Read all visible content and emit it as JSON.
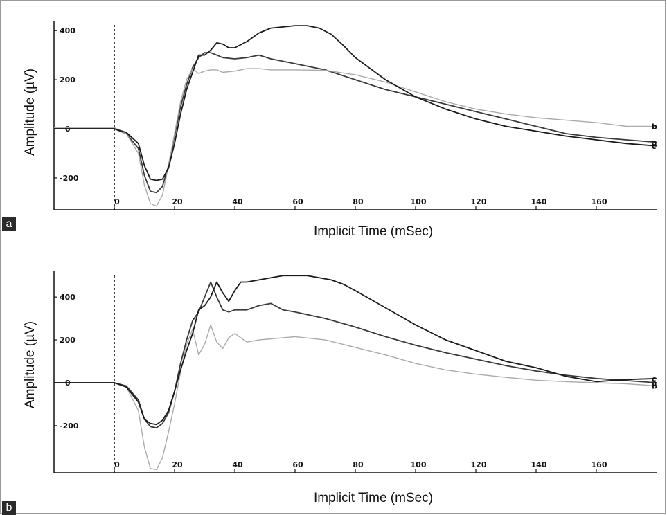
{
  "panels": [
    {
      "tag": "a",
      "ylabel": "Amplitude (µV)",
      "xlabel": "Implicit Time (mSec)"
    },
    {
      "tag": "b",
      "ylabel": "Amplitude (µV)",
      "xlabel": "Implicit Time (mSec)"
    }
  ],
  "chart_data": [
    {
      "type": "line",
      "xlabel": "Implicit Time (mSec)",
      "ylabel": "Amplitude (µV)",
      "x_ticks": [
        0,
        20,
        40,
        60,
        80,
        100,
        120,
        140,
        160
      ],
      "y_ticks": [
        400,
        200,
        0,
        -200
      ],
      "y_tick_labels": [
        "400",
        "200",
        "0",
        "-200"
      ],
      "xlim": [
        -20,
        180
      ],
      "ylim": [
        -330,
        440
      ],
      "stimulus_marker_x": 0,
      "series": [
        {
          "name": "a",
          "color": "#3a3a3a",
          "x": [
            -20,
            0,
            4,
            8,
            10,
            12,
            14,
            16,
            18,
            20,
            22,
            24,
            26,
            28,
            30,
            32,
            34,
            36,
            40,
            44,
            48,
            52,
            56,
            60,
            70,
            80,
            90,
            100,
            110,
            120,
            130,
            140,
            150,
            160,
            170,
            180
          ],
          "y": [
            0,
            0,
            -20,
            -80,
            -190,
            -255,
            -260,
            -235,
            -150,
            -30,
            90,
            180,
            250,
            290,
            310,
            310,
            300,
            290,
            285,
            290,
            300,
            285,
            275,
            265,
            240,
            200,
            160,
            130,
            100,
            70,
            40,
            10,
            -20,
            -35,
            -45,
            -55
          ]
        },
        {
          "name": "b",
          "color": "#aaaaaa",
          "x": [
            -20,
            0,
            4,
            8,
            10,
            12,
            14,
            16,
            18,
            20,
            22,
            24,
            26,
            28,
            30,
            32,
            34,
            36,
            40,
            44,
            48,
            52,
            60,
            70,
            80,
            90,
            100,
            110,
            120,
            130,
            140,
            150,
            160,
            170,
            180
          ],
          "y": [
            5,
            5,
            -20,
            -100,
            -230,
            -305,
            -315,
            -270,
            -150,
            -20,
            110,
            200,
            245,
            225,
            235,
            240,
            240,
            230,
            235,
            245,
            245,
            240,
            240,
            238,
            220,
            190,
            150,
            110,
            80,
            60,
            45,
            35,
            25,
            10,
            10
          ]
        },
        {
          "name": "c",
          "color": "#1a1a1a",
          "x": [
            -20,
            0,
            4,
            8,
            10,
            12,
            14,
            16,
            18,
            20,
            22,
            24,
            26,
            28,
            30,
            32,
            34,
            36,
            38,
            40,
            44,
            48,
            52,
            56,
            60,
            64,
            68,
            72,
            76,
            80,
            90,
            100,
            110,
            120,
            130,
            140,
            150,
            160,
            170,
            180
          ],
          "y": [
            0,
            0,
            -15,
            -60,
            -150,
            -205,
            -210,
            -205,
            -160,
            -60,
            60,
            160,
            230,
            300,
            300,
            320,
            350,
            345,
            330,
            330,
            355,
            390,
            410,
            415,
            420,
            420,
            410,
            385,
            340,
            290,
            200,
            130,
            80,
            40,
            10,
            -10,
            -30,
            -45,
            -60,
            -70
          ]
        }
      ]
    },
    {
      "type": "line",
      "xlabel": "Implicit Time (mSec)",
      "ylabel": "Amplitude (µV)",
      "x_ticks": [
        0,
        20,
        40,
        60,
        80,
        100,
        120,
        140,
        160
      ],
      "y_ticks": [
        400,
        200,
        0,
        -200
      ],
      "y_tick_labels": [
        "400",
        "200",
        "0",
        "-200"
      ],
      "xlim": [
        -20,
        180
      ],
      "ylim": [
        -420,
        520
      ],
      "stimulus_marker_x": 0,
      "series": [
        {
          "name": "a",
          "color": "#3a3a3a",
          "x": [
            -20,
            0,
            4,
            8,
            10,
            12,
            14,
            16,
            18,
            20,
            22,
            24,
            26,
            28,
            30,
            32,
            34,
            36,
            38,
            40,
            44,
            48,
            52,
            56,
            60,
            70,
            80,
            90,
            100,
            110,
            120,
            130,
            140,
            150,
            160,
            170,
            180
          ],
          "y": [
            0,
            0,
            -15,
            -80,
            -170,
            -205,
            -210,
            -190,
            -140,
            -40,
            90,
            200,
            290,
            330,
            400,
            470,
            400,
            340,
            330,
            340,
            340,
            360,
            370,
            340,
            330,
            300,
            260,
            215,
            175,
            140,
            110,
            80,
            55,
            35,
            20,
            10,
            0
          ]
        },
        {
          "name": "b",
          "color": "#aaaaaa",
          "x": [
            -20,
            0,
            4,
            8,
            10,
            12,
            14,
            16,
            18,
            20,
            22,
            24,
            26,
            28,
            30,
            32,
            34,
            36,
            38,
            40,
            44,
            48,
            52,
            60,
            70,
            80,
            90,
            100,
            110,
            120,
            130,
            140,
            150,
            160,
            170,
            180
          ],
          "y": [
            0,
            0,
            -20,
            -130,
            -300,
            -400,
            -405,
            -350,
            -230,
            -100,
            50,
            180,
            250,
            130,
            180,
            270,
            190,
            160,
            210,
            230,
            190,
            200,
            205,
            215,
            200,
            165,
            130,
            90,
            60,
            40,
            25,
            12,
            5,
            0,
            -5,
            -15
          ]
        },
        {
          "name": "c",
          "color": "#1a1a1a",
          "x": [
            -20,
            0,
            4,
            8,
            10,
            12,
            14,
            16,
            18,
            20,
            22,
            24,
            26,
            28,
            30,
            32,
            34,
            36,
            38,
            40,
            42,
            44,
            48,
            52,
            56,
            60,
            64,
            68,
            72,
            76,
            80,
            90,
            100,
            110,
            120,
            130,
            140,
            150,
            160,
            170,
            180
          ],
          "y": [
            0,
            0,
            -20,
            -90,
            -170,
            -190,
            -195,
            -175,
            -130,
            -40,
            60,
            150,
            230,
            340,
            360,
            400,
            470,
            420,
            380,
            430,
            470,
            470,
            480,
            490,
            500,
            500,
            500,
            490,
            480,
            460,
            430,
            350,
            270,
            200,
            150,
            100,
            70,
            30,
            5,
            15,
            20
          ]
        }
      ]
    }
  ]
}
